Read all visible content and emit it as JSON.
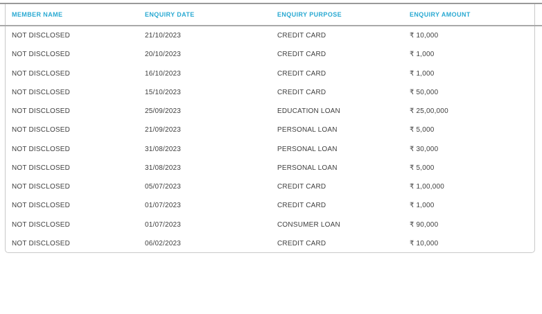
{
  "report_table": {
    "columns": [
      "MEMBER NAME",
      "ENQUIRY DATE",
      "ENQUIRY PURPOSE",
      "ENQUIRY AMOUNT"
    ],
    "rows": [
      [
        "NOT DISCLOSED",
        "21/10/2023",
        "CREDIT CARD",
        "₹ 10,000"
      ],
      [
        "NOT DISCLOSED",
        "20/10/2023",
        "CREDIT CARD",
        "₹ 1,000"
      ],
      [
        "NOT DISCLOSED",
        "16/10/2023",
        "CREDIT CARD",
        "₹ 1,000"
      ],
      [
        "NOT DISCLOSED",
        "15/10/2023",
        "CREDIT CARD",
        "₹ 50,000"
      ],
      [
        "NOT DISCLOSED",
        "25/09/2023",
        "EDUCATION LOAN",
        "₹ 25,00,000"
      ],
      [
        "NOT DISCLOSED",
        "21/09/2023",
        "PERSONAL LOAN",
        "₹ 5,000"
      ],
      [
        "NOT DISCLOSED",
        "31/08/2023",
        "PERSONAL LOAN",
        "₹ 30,000"
      ],
      [
        "NOT DISCLOSED",
        "31/08/2023",
        "PERSONAL LOAN",
        "₹ 5,000"
      ],
      [
        "NOT DISCLOSED",
        "05/07/2023",
        "CREDIT CARD",
        "₹ 1,00,000"
      ],
      [
        "NOT DISCLOSED",
        "01/07/2023",
        "CREDIT CARD",
        "₹ 1,000"
      ],
      [
        "NOT DISCLOSED",
        "01/07/2023",
        "CONSUMER LOAN",
        "₹ 90,000"
      ],
      [
        "NOT DISCLOSED",
        "06/02/2023",
        "CREDIT CARD",
        "₹ 10,000"
      ]
    ]
  },
  "colors": {
    "header_text": "#29a9d2",
    "body_text": "#3e3e3e",
    "table_border": "#c9c9c9",
    "top_rule": "#999999",
    "header_rule": "#a9a9a9",
    "background": "#ffffff"
  }
}
